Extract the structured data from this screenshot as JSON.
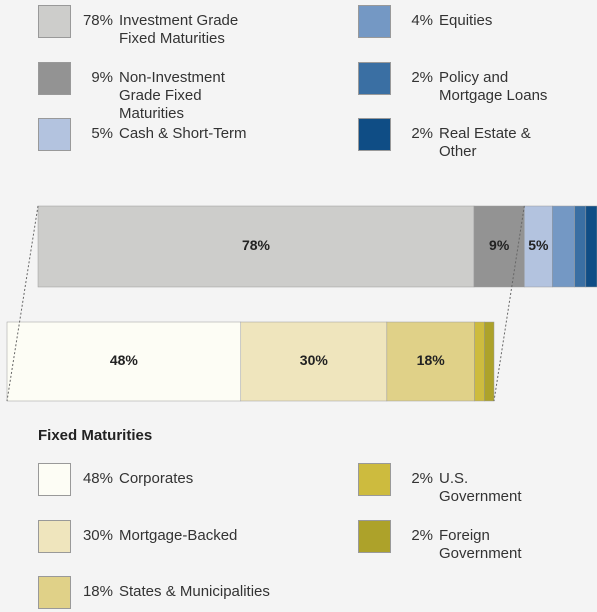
{
  "chart_data": [
    {
      "type": "stacked_bar",
      "series": [
        {
          "name": "Investment Grade Fixed Maturities",
          "color": "#cdcdcb",
          "values": [
            78
          ],
          "value_labels": [
            "78%"
          ]
        },
        {
          "name": "Non-Investment Grade Fixed Maturities",
          "color": "#939393",
          "values": [
            9
          ],
          "value_labels": [
            "9%"
          ]
        },
        {
          "name": "Cash & Short-Term",
          "color": "#b3c3df",
          "values": [
            5
          ],
          "value_labels": [
            "5%"
          ]
        },
        {
          "name": "Equities",
          "color": "#7498c4",
          "values": [
            4
          ],
          "value_labels": [
            "4%"
          ]
        },
        {
          "name": "Policy and Mortgage Loans",
          "color": "#3a6fa3",
          "values": [
            2
          ],
          "value_labels": [
            "2%"
          ]
        },
        {
          "name": "Real Estate & Other",
          "color": "#0f4d85",
          "values": [
            2
          ],
          "value_labels": [
            "2%"
          ]
        }
      ]
    },
    {
      "type": "stacked_bar",
      "title": "Fixed Maturities",
      "series": [
        {
          "name": "Corporates",
          "color": "#fdfdf5",
          "values": [
            48
          ],
          "value_labels": [
            "48%"
          ]
        },
        {
          "name": "Mortgage-Backed",
          "color": "#efe5bd",
          "values": [
            30
          ],
          "value_labels": [
            "30%"
          ]
        },
        {
          "name": "States & Municipalities",
          "color": "#e0d188",
          "values": [
            18
          ],
          "value_labels": [
            "18%"
          ]
        },
        {
          "name": "U.S. Government",
          "color": "#cdbb3e",
          "values": [
            2
          ],
          "value_labels": [
            "2%"
          ]
        },
        {
          "name": "Foreign Government",
          "color": "#ada22a",
          "values": [
            2
          ],
          "value_labels": [
            "2%"
          ]
        }
      ]
    }
  ]
}
